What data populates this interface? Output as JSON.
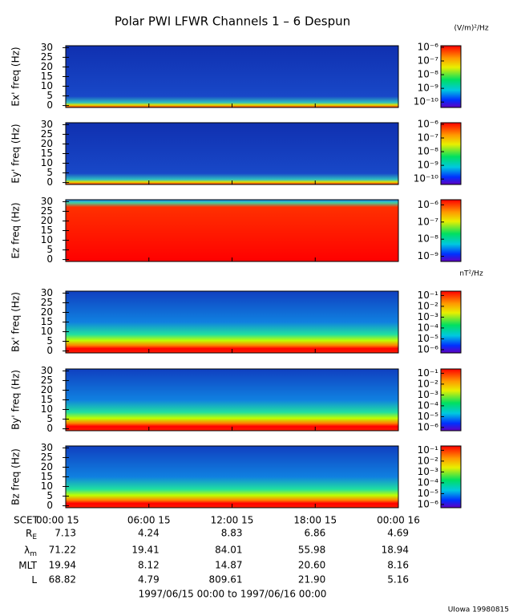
{
  "title": "Polar PWI LFWR Channels 1 – 6 Despun",
  "x_axis": {
    "label": "SCET",
    "xlim": [
      0,
      24
    ],
    "xticks": [
      {
        "value": 0,
        "label": "00:00 15"
      },
      {
        "value": 6,
        "label": "06:00 15"
      },
      {
        "value": 12,
        "label": "12:00 15"
      },
      {
        "value": 18,
        "label": "18:00 15"
      },
      {
        "value": 24,
        "label": "00:00 16"
      }
    ]
  },
  "chart_data": [
    {
      "type": "spectrogram",
      "ylabel": "Ex' freq (Hz)",
      "ylim": [
        -1,
        31
      ],
      "yticks": [
        0,
        5,
        10,
        15,
        20,
        25,
        30
      ],
      "colorbar_unit": "(V/m)²/Hz",
      "clim": [
        4e-11,
        1.3e-06
      ],
      "log": true,
      "cticks": [
        {
          "value": 1e-06,
          "label": "10⁻⁶"
        },
        {
          "value": 1e-07,
          "label": "10⁻⁷"
        },
        {
          "value": 1e-08,
          "label": "10⁻⁸"
        },
        {
          "value": 1e-09,
          "label": "10⁻⁹"
        },
        {
          "value": 1e-10,
          "label": "10⁻¹⁰"
        }
      ]
    },
    {
      "type": "spectrogram",
      "ylabel": "Ey' freq (Hz)",
      "ylim": [
        -1,
        31
      ],
      "yticks": [
        0,
        5,
        10,
        15,
        20,
        25,
        30
      ],
      "clim": [
        4e-11,
        1.3e-06
      ],
      "log": true,
      "cticks": [
        {
          "value": 1e-06,
          "label": "10⁻⁶"
        },
        {
          "value": 1e-07,
          "label": "10⁻⁷"
        },
        {
          "value": 1e-08,
          "label": "10⁻⁸"
        },
        {
          "value": 1e-09,
          "label": "10⁻⁹"
        },
        {
          "value": 1e-10,
          "label": "10⁻¹⁰"
        }
      ]
    },
    {
      "type": "spectrogram",
      "ylabel": "Ez freq (Hz)",
      "ylim": [
        -1,
        31
      ],
      "yticks": [
        0,
        5,
        10,
        15,
        20,
        25,
        30
      ],
      "clim": [
        5e-10,
        2e-06
      ],
      "log": true,
      "cticks": [
        {
          "value": 1e-06,
          "label": "10⁻⁶"
        },
        {
          "value": 1e-07,
          "label": "10⁻⁷"
        },
        {
          "value": 1e-08,
          "label": "10⁻⁸"
        },
        {
          "value": 1e-09,
          "label": "10⁻⁹"
        }
      ]
    },
    {
      "type": "spectrogram",
      "ylabel": "Bx' freq (Hz)",
      "ylim": [
        -1,
        31
      ],
      "yticks": [
        0,
        5,
        10,
        15,
        20,
        25,
        30
      ],
      "colorbar_unit": "nT²/Hz",
      "clim": [
        5e-07,
        0.25
      ],
      "log": true,
      "cticks": [
        {
          "value": 0.1,
          "label": "10⁻¹"
        },
        {
          "value": 0.01,
          "label": "10⁻²"
        },
        {
          "value": 0.001,
          "label": "10⁻³"
        },
        {
          "value": 0.0001,
          "label": "10⁻⁴"
        },
        {
          "value": 1e-05,
          "label": "10⁻⁵"
        },
        {
          "value": 1e-06,
          "label": "10⁻⁶"
        }
      ]
    },
    {
      "type": "spectrogram",
      "ylabel": "By' freq (Hz)",
      "ylim": [
        -1,
        31
      ],
      "yticks": [
        0,
        5,
        10,
        15,
        20,
        25,
        30
      ],
      "clim": [
        5e-07,
        0.25
      ],
      "log": true,
      "cticks": [
        {
          "value": 0.1,
          "label": "10⁻¹"
        },
        {
          "value": 0.01,
          "label": "10⁻²"
        },
        {
          "value": 0.001,
          "label": "10⁻³"
        },
        {
          "value": 0.0001,
          "label": "10⁻⁴"
        },
        {
          "value": 1e-05,
          "label": "10⁻⁵"
        },
        {
          "value": 1e-06,
          "label": "10⁻⁶"
        }
      ]
    },
    {
      "type": "spectrogram",
      "ylabel": "Bz freq (Hz)",
      "ylim": [
        -1,
        31
      ],
      "yticks": [
        0,
        5,
        10,
        15,
        20,
        25,
        30
      ],
      "clim": [
        5e-07,
        0.25
      ],
      "log": true,
      "cticks": [
        {
          "value": 0.1,
          "label": "10⁻¹"
        },
        {
          "value": 0.01,
          "label": "10⁻²"
        },
        {
          "value": 0.001,
          "label": "10⁻³"
        },
        {
          "value": 0.0001,
          "label": "10⁻⁴"
        },
        {
          "value": 1e-05,
          "label": "10⁻⁵"
        },
        {
          "value": 1e-06,
          "label": "10⁻⁶"
        }
      ]
    }
  ],
  "ephemeris": {
    "rows": [
      {
        "label": "R",
        "sub": "E",
        "values": [
          "7.13",
          "4.24",
          "8.83",
          "6.86",
          "4.69"
        ]
      },
      {
        "label": "λ",
        "sub": "m",
        "values": [
          "71.22",
          "19.41",
          "84.01",
          "55.98",
          "18.94"
        ]
      },
      {
        "label": "MLT",
        "values": [
          "19.94",
          "8.12",
          "14.87",
          "20.60",
          "8.16"
        ]
      },
      {
        "label": "L",
        "values": [
          "68.82",
          "4.79",
          "809.61",
          "21.90",
          "5.16"
        ]
      }
    ]
  },
  "time_range": "1997/06/15 00:00 to 1997/06/16 00:00",
  "footer": "UIowa 19980815"
}
